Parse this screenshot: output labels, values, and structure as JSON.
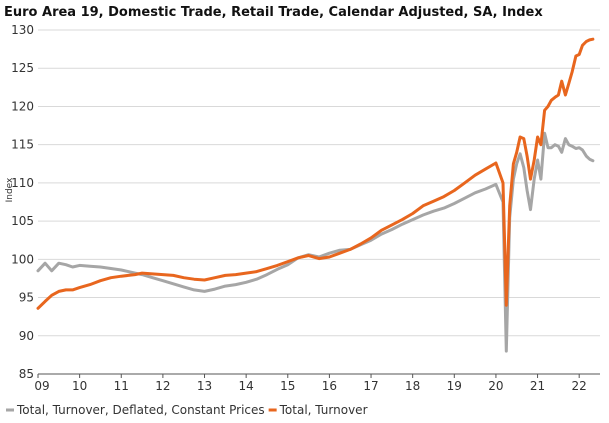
{
  "chart_data": {
    "type": "line",
    "title": "Euro Area 19, Domestic Trade, Retail Trade, Calendar Adjusted, SA, Index",
    "ylabel": "Index",
    "xlabel": "",
    "ylim": [
      85,
      130
    ],
    "yticks": [
      85,
      90,
      95,
      100,
      105,
      110,
      115,
      120,
      125,
      130
    ],
    "xlim": [
      2009.0,
      2022.5
    ],
    "xtick_positions": [
      2009,
      2010,
      2011,
      2012,
      2013,
      2014,
      2015,
      2016,
      2017,
      2018,
      2019,
      2020,
      2021,
      2022
    ],
    "xtick_labels": [
      "09",
      "10",
      "11",
      "12",
      "13",
      "14",
      "15",
      "16",
      "17",
      "18",
      "19",
      "20",
      "21",
      "22"
    ],
    "grid": "horizontal",
    "legend_position": "bottom",
    "colors": {
      "deflated": "#a6a6a6",
      "turnover": "#e8661e",
      "grid": "#d9d9d9"
    },
    "series": [
      {
        "name": "Total, Turnover, Deflated, Constant Prices",
        "color": "#a6a6a6",
        "x": [
          2009.0,
          2009.17,
          2009.33,
          2009.5,
          2009.67,
          2009.83,
          2010.0,
          2010.25,
          2010.5,
          2010.75,
          2011.0,
          2011.17,
          2011.33,
          2011.5,
          2011.75,
          2012.0,
          2012.25,
          2012.5,
          2012.75,
          2013.0,
          2013.25,
          2013.5,
          2013.75,
          2014.0,
          2014.25,
          2014.5,
          2014.75,
          2015.0,
          2015.25,
          2015.5,
          2015.75,
          2016.0,
          2016.25,
          2016.5,
          2016.75,
          2017.0,
          2017.25,
          2017.5,
          2017.75,
          2018.0,
          2018.25,
          2018.5,
          2018.75,
          2019.0,
          2019.25,
          2019.5,
          2019.75,
          2020.0,
          2020.17,
          2020.25,
          2020.33,
          2020.42,
          2020.5,
          2020.58,
          2020.67,
          2020.75,
          2020.83,
          2020.92,
          2021.0,
          2021.08,
          2021.17,
          2021.25,
          2021.33,
          2021.42,
          2021.5,
          2021.58,
          2021.67,
          2021.75,
          2021.83,
          2021.92,
          2022.0,
          2022.08,
          2022.17,
          2022.25,
          2022.33
        ],
        "values": [
          98.5,
          99.5,
          98.5,
          99.5,
          99.3,
          99.0,
          99.2,
          99.1,
          99.0,
          98.8,
          98.6,
          98.4,
          98.2,
          98.0,
          97.6,
          97.2,
          96.8,
          96.4,
          96.0,
          95.8,
          96.1,
          96.5,
          96.7,
          97.0,
          97.4,
          98.0,
          98.7,
          99.3,
          100.2,
          100.6,
          100.3,
          100.8,
          101.2,
          101.3,
          101.9,
          102.5,
          103.3,
          103.9,
          104.6,
          105.2,
          105.8,
          106.3,
          106.7,
          107.3,
          108.0,
          108.7,
          109.2,
          109.8,
          107.5,
          88.0,
          105.5,
          110.5,
          112.5,
          113.8,
          112.0,
          109.0,
          106.5,
          110.5,
          113.0,
          110.5,
          116.5,
          114.6,
          114.6,
          115.0,
          114.8,
          114.0,
          115.8,
          115.0,
          114.8,
          114.5,
          114.6,
          114.3,
          113.5,
          113.1,
          112.9
        ]
      },
      {
        "name": "Total, Turnover",
        "color": "#e8661e",
        "x": [
          2009.0,
          2009.17,
          2009.33,
          2009.5,
          2009.67,
          2009.83,
          2010.0,
          2010.25,
          2010.5,
          2010.75,
          2011.0,
          2011.17,
          2011.33,
          2011.5,
          2011.75,
          2012.0,
          2012.25,
          2012.5,
          2012.75,
          2013.0,
          2013.25,
          2013.5,
          2013.75,
          2014.0,
          2014.25,
          2014.5,
          2014.75,
          2015.0,
          2015.25,
          2015.5,
          2015.75,
          2016.0,
          2016.25,
          2016.5,
          2016.75,
          2017.0,
          2017.25,
          2017.5,
          2017.75,
          2018.0,
          2018.25,
          2018.5,
          2018.75,
          2019.0,
          2019.25,
          2019.5,
          2019.75,
          2020.0,
          2020.17,
          2020.25,
          2020.33,
          2020.42,
          2020.5,
          2020.58,
          2020.67,
          2020.75,
          2020.83,
          2020.92,
          2021.0,
          2021.08,
          2021.17,
          2021.25,
          2021.33,
          2021.42,
          2021.5,
          2021.58,
          2021.67,
          2021.75,
          2021.83,
          2021.92,
          2022.0,
          2022.08,
          2022.17,
          2022.25,
          2022.33
        ],
        "values": [
          93.6,
          94.5,
          95.3,
          95.8,
          96.0,
          96.0,
          96.3,
          96.7,
          97.2,
          97.6,
          97.8,
          97.9,
          98.0,
          98.2,
          98.1,
          98.0,
          97.9,
          97.6,
          97.4,
          97.3,
          97.6,
          97.9,
          98.0,
          98.2,
          98.4,
          98.8,
          99.2,
          99.7,
          100.2,
          100.5,
          100.1,
          100.3,
          100.8,
          101.3,
          102.0,
          102.8,
          103.8,
          104.5,
          105.2,
          106.0,
          107.0,
          107.6,
          108.2,
          109.0,
          110.0,
          111.0,
          111.8,
          112.6,
          110.0,
          94.0,
          107.0,
          112.5,
          114.0,
          116.0,
          115.8,
          113.5,
          110.5,
          113.0,
          116.0,
          115.0,
          119.5,
          120.0,
          120.8,
          121.2,
          121.5,
          123.3,
          121.5,
          123.0,
          124.5,
          126.6,
          126.8,
          128.0,
          128.5,
          128.7,
          128.8
        ]
      }
    ]
  }
}
